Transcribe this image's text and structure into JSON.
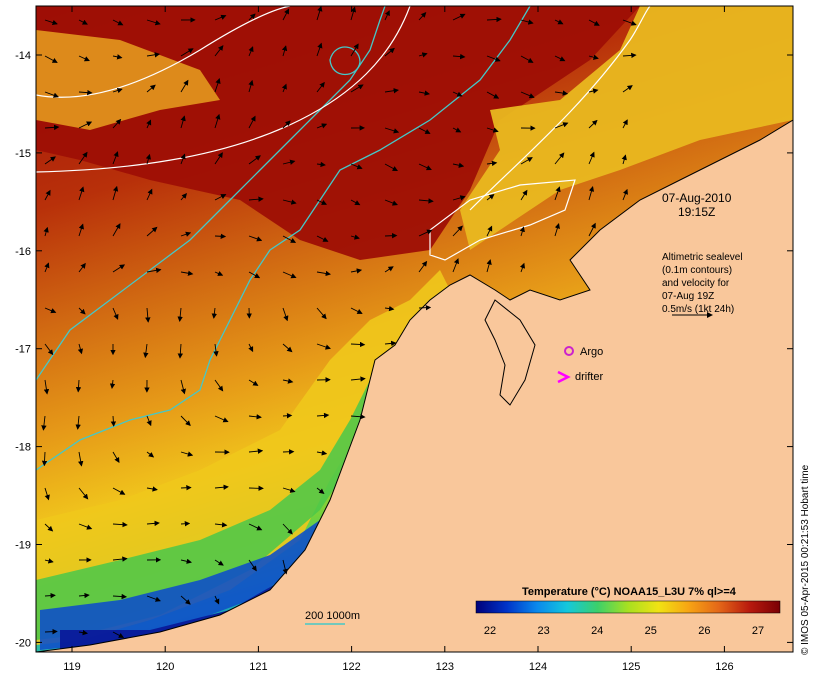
{
  "map": {
    "lon_ticks": [
      "119",
      "120",
      "121",
      "122",
      "123",
      "124",
      "125",
      "126"
    ],
    "lat_ticks": [
      "-14",
      "-15",
      "-16",
      "-17",
      "-18",
      "-19",
      "-20"
    ],
    "timestamp_date": "07-Aug-2010",
    "timestamp_time": "19:15Z",
    "altimetry_notes": [
      "Altimetric sealevel",
      "(0.1m contours)",
      "and velocity for",
      "07-Aug 19Z",
      "0.5m/s (1kt 24h)"
    ],
    "argo_label": "Argo",
    "drifter_label": "drifter",
    "depth_label": "200 1000m",
    "colorbar_title": "Temperature (°C) NOAA15_L3U 7% ql>=4",
    "colorbar_ticks": [
      "22",
      "23",
      "24",
      "25",
      "26",
      "27"
    ],
    "credit": "© IMOS 05-Apr-2015 00:21:53 Hobart time",
    "colors": {
      "land": "#f9c79b",
      "sst_warm": "#9e0f05",
      "sst_orange": "#e08a18",
      "sst_yellow": "#f2cc1c",
      "sst_green": "#33c652",
      "sst_blue": "#1064d4",
      "sst_dark": "#0a1a9a",
      "depth_contour": "#45c8c8",
      "argo": "#cc22cc",
      "drifter": "#ff00ff"
    },
    "colorbar_scale": [
      "#00007a",
      "#0033c8",
      "#0a88ec",
      "#14c8dc",
      "#3cd06a",
      "#a8e020",
      "#f0e214",
      "#f7a414",
      "#e36618",
      "#b81a0e",
      "#7a0004"
    ]
  }
}
